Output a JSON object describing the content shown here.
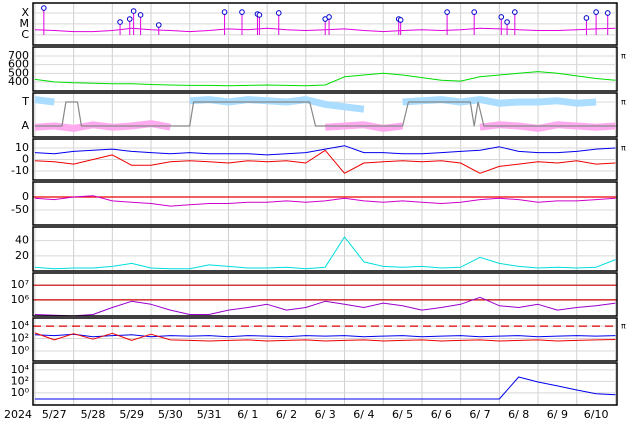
{
  "chart_data": [
    {
      "type": "line",
      "log": true,
      "ylim": [
        1.2e-07,
        0.00081
      ],
      "yticks": [
        {
          "value": 0.0001,
          "label": "X"
        },
        {
          "value": 1e-05,
          "label": "M"
        },
        {
          "value": 1e-06,
          "label": "C"
        }
      ],
      "x": [
        0,
        0.5,
        1,
        1.5,
        2,
        2.5,
        3,
        3.5,
        4,
        4.5,
        5,
        5.5,
        6,
        6.5,
        7,
        7.5,
        8,
        8.5,
        9,
        9.5,
        10,
        10.5,
        11,
        11.5,
        12,
        12.5,
        13,
        13.5,
        14,
        14.5,
        15
      ],
      "series": [
        {
          "color": "#e000e0",
          "values": [
            3e-06,
            2.5e-06,
            2e-06,
            2e-06,
            2.5e-06,
            4e-06,
            3e-06,
            2.5e-06,
            2e-06,
            2.5e-06,
            3.5e-06,
            3e-06,
            4e-06,
            3e-06,
            2.5e-06,
            3e-06,
            3.5e-06,
            2.5e-06,
            2e-06,
            2.5e-06,
            3e-06,
            2.5e-06,
            3e-06,
            4e-06,
            3.5e-06,
            3e-06,
            2.5e-06,
            2.5e-06,
            3e-06,
            3.5e-06,
            4e-06
          ]
        }
      ],
      "flares": {
        "color": "#0000cc",
        "stem_color": "#e000e0",
        "x": [
          0.23,
          2.2,
          2.45,
          2.55,
          2.73,
          3.2,
          4.9,
          5.35,
          5.75,
          5.8,
          6.3,
          7.5,
          7.6,
          9.4,
          9.45,
          10.65,
          11.35,
          12.05,
          12.2,
          12.4,
          14.25,
          14.5,
          14.8
        ],
        "values": [
          0.00028,
          1.5e-05,
          2.8e-05,
          0.00015,
          6.6e-05,
          8e-06,
          0.00012,
          0.00012,
          8e-05,
          6.6e-05,
          0.0001,
          2.8e-05,
          4.3e-05,
          2.8e-05,
          2.3e-05,
          0.00012,
          0.00012,
          4.3e-05,
          1.5e-05,
          0.00012,
          3.5e-05,
          0.00012,
          0.0001
        ]
      }
    },
    {
      "type": "line",
      "ylim": [
        295,
        805
      ],
      "yticks": [
        700,
        600,
        500,
        400
      ],
      "side_label": "π",
      "x": [
        0,
        0.5,
        1,
        1.5,
        2,
        2.5,
        3,
        3.5,
        4,
        4.5,
        5,
        5.5,
        6,
        6.5,
        7,
        7.5,
        8,
        8.5,
        9,
        9.5,
        10,
        10.5,
        11,
        11.5,
        12,
        12.5,
        13,
        13.5,
        14,
        14.5,
        15
      ],
      "series": [
        {
          "color": "#00dd00",
          "values": [
            430,
            400,
            390,
            385,
            380,
            380,
            370,
            365,
            360,
            360,
            355,
            360,
            365,
            360,
            355,
            365,
            460,
            480,
            500,
            480,
            450,
            420,
            410,
            460,
            480,
            500,
            520,
            500,
            470,
            440,
            420
          ]
        }
      ]
    },
    {
      "type": "line",
      "ylim": [
        -0.46,
        1.375
      ],
      "yticks": [
        {
          "value": 1,
          "label": "T"
        },
        {
          "value": 0,
          "label": "A"
        }
      ],
      "side_label": "π",
      "x": [
        0,
        0.5,
        1,
        1.5,
        2,
        2.5,
        3,
        3.5,
        4,
        4.5,
        5,
        5.5,
        6,
        6.5,
        7,
        7.5,
        8,
        8.5,
        9,
        9.5,
        10,
        10.5,
        11,
        11.5,
        12,
        12.5,
        13,
        13.5,
        14,
        14.5,
        15
      ],
      "series": [
        {
          "color": "#aaddff",
          "width": 7,
          "values": [
            1.1,
            1.0,
            null,
            null,
            null,
            null,
            null,
            null,
            1.05,
            1.1,
            1.0,
            1.1,
            1.05,
            1.0,
            1.1,
            0.9,
            0.8,
            0.7,
            null,
            1.0,
            1.05,
            1.1,
            1.0,
            1.1,
            0.95,
            1.0,
            1.0,
            1.05,
            0.95,
            1.0,
            null
          ]
        },
        {
          "color": "#ffaaee",
          "width": 7,
          "values": [
            -0.05,
            0.0,
            -0.1,
            0.05,
            -0.05,
            0.0,
            0.1,
            -0.05,
            null,
            null,
            null,
            null,
            null,
            null,
            null,
            -0.05,
            0.0,
            0.05,
            -0.1,
            0.0,
            null,
            null,
            null,
            -0.05,
            0.05,
            0.0,
            -0.1,
            0.05,
            0.0,
            -0.05,
            0.0
          ]
        },
        {
          "color": "#888888",
          "width": 1.2,
          "x": [
            0,
            0.7,
            0.8,
            1.1,
            1.2,
            4.0,
            4.1,
            7.1,
            7.25,
            9.5,
            9.65,
            11.25,
            11.35,
            11.45,
            11.6,
            15.04
          ],
          "values": [
            0,
            0,
            1,
            1,
            0,
            0,
            1,
            1,
            0,
            0,
            1,
            1,
            0,
            1,
            0,
            0
          ]
        }
      ]
    },
    {
      "type": "line",
      "ylim": [
        -17.8,
        17.8
      ],
      "yticks": [
        10,
        0,
        -10
      ],
      "side_label": "π",
      "x": [
        0,
        0.5,
        1,
        1.5,
        2,
        2.5,
        3,
        3.5,
        4,
        4.5,
        5,
        5.5,
        6,
        6.5,
        7,
        7.5,
        8,
        8.5,
        9,
        9.5,
        10,
        10.5,
        11,
        11.5,
        12,
        12.5,
        13,
        13.5,
        14,
        14.5,
        15
      ],
      "series": [
        {
          "color": "#0000ee",
          "values": [
            6,
            5,
            7,
            8,
            9,
            7,
            6,
            5,
            6,
            5,
            5,
            5,
            4,
            5,
            6,
            9,
            12,
            6,
            6,
            5,
            5,
            6,
            7,
            8,
            11,
            7,
            6,
            6,
            7,
            9,
            10
          ]
        },
        {
          "color": "#ee0000",
          "values": [
            -1,
            -2,
            -4,
            0,
            4,
            -5,
            -5,
            -2,
            -1,
            -2,
            -3,
            -1,
            -2,
            -1,
            -3,
            8,
            -12,
            -3,
            -2,
            -1,
            -2,
            -1,
            -3,
            -12,
            -6,
            -4,
            -2,
            -3,
            -1,
            -4,
            -3
          ]
        }
      ]
    },
    {
      "type": "line",
      "ylim": [
        -107.7,
        57.7
      ],
      "yticks": [
        0,
        -50
      ],
      "hlines": [
        0
      ],
      "hline_color": "#ee0000",
      "x": [
        0,
        0.5,
        1,
        1.5,
        2,
        2.5,
        3,
        3.5,
        4,
        4.5,
        5,
        5.5,
        6,
        6.5,
        7,
        7.5,
        8,
        8.5,
        9,
        9.5,
        10,
        10.5,
        11,
        11.5,
        12,
        12.5,
        13,
        13.5,
        14,
        14.5,
        15
      ],
      "series": [
        {
          "color": "#cc00cc",
          "values": [
            -5,
            -10,
            0,
            5,
            -15,
            -20,
            -25,
            -35,
            -30,
            -25,
            -25,
            -20,
            -20,
            -15,
            -20,
            -15,
            -5,
            -15,
            -20,
            -15,
            -20,
            -25,
            -20,
            -10,
            -5,
            -10,
            -20,
            -15,
            -15,
            -10,
            -5
          ]
        }
      ]
    },
    {
      "type": "line",
      "ylim": [
        0,
        58
      ],
      "yticks": [
        40,
        20
      ],
      "x": [
        0,
        0.5,
        1,
        1.5,
        2,
        2.5,
        3,
        3.5,
        4,
        4.5,
        5,
        5.5,
        6,
        6.5,
        7,
        7.5,
        8,
        8.5,
        9,
        9.5,
        10,
        10.5,
        11,
        11.5,
        12,
        12.5,
        13,
        13.5,
        14,
        14.5,
        15
      ],
      "series": [
        {
          "color": "#00dddd",
          "values": [
            5,
            3,
            4,
            4,
            6,
            10,
            4,
            3,
            3,
            8,
            6,
            4,
            4,
            5,
            3,
            5,
            45,
            12,
            6,
            5,
            6,
            4,
            5,
            18,
            10,
            6,
            4,
            5,
            4,
            5,
            15
          ]
        }
      ]
    },
    {
      "type": "line",
      "log": true,
      "ylim": [
        79000,
        68000000
      ],
      "yticks": [
        {
          "value": 10000000,
          "label": "10⁷"
        },
        {
          "value": 1000000,
          "label": "10⁶"
        }
      ],
      "hlines": [
        10000000,
        1000000
      ],
      "hline_color": "#cc0000",
      "x": [
        0,
        0.5,
        1,
        1.5,
        2,
        2.5,
        3,
        3.5,
        4,
        4.5,
        5,
        5.5,
        6,
        6.5,
        7,
        7.5,
        8,
        8.5,
        9,
        9.5,
        10,
        10.5,
        11,
        11.5,
        12,
        12.5,
        13,
        13.5,
        14,
        14.5,
        15
      ],
      "series": [
        {
          "color": "#9900cc",
          "values": [
            100000,
            90000,
            80000,
            100000,
            300000,
            800000,
            500000,
            200000,
            100000,
            100000,
            200000,
            300000,
            500000,
            200000,
            300000,
            800000,
            500000,
            300000,
            600000,
            400000,
            200000,
            300000,
            500000,
            1500000,
            400000,
            300000,
            500000,
            200000,
            300000,
            400000,
            600000
          ]
        }
      ]
    },
    {
      "type": "line",
      "log": true,
      "ylim": [
        0.025,
        200000
      ],
      "yticks": [
        {
          "value": 10000,
          "label": "10⁴"
        },
        {
          "value": 100,
          "label": "10²"
        },
        {
          "value": 1,
          "label": "10⁰"
        }
      ],
      "hlines": [
        10000
      ],
      "hline_color": "#dd0000",
      "hline_dash": true,
      "side_label": "π",
      "x": [
        0,
        0.5,
        1,
        1.5,
        2,
        2.5,
        3,
        3.5,
        4,
        4.5,
        5,
        5.5,
        6,
        6.5,
        7,
        7.5,
        8,
        8.5,
        9,
        9.5,
        10,
        10.5,
        11,
        11.5,
        12,
        12.5,
        13,
        13.5,
        14,
        14.5,
        15
      ],
      "series": [
        {
          "color": "#0000ee",
          "values": [
            400,
            300,
            500,
            200,
            300,
            400,
            200,
            300,
            250,
            300,
            200,
            300,
            250,
            200,
            300,
            250,
            300,
            200,
            250,
            300,
            200,
            250,
            300,
            200,
            250,
            300,
            200,
            250,
            300,
            250,
            300
          ]
        },
        {
          "color": "#ee0000",
          "values": [
            800,
            60,
            600,
            80,
            700,
            50,
            500,
            60,
            50,
            40,
            50,
            60,
            40,
            50,
            60,
            40,
            50,
            60,
            40,
            50,
            60,
            40,
            50,
            60,
            40,
            50,
            60,
            40,
            50,
            60,
            70
          ]
        }
      ]
    },
    {
      "type": "line",
      "log": true,
      "ylim": [
        0.008,
        160000
      ],
      "yticks": [
        {
          "value": 10000,
          "label": "10⁴"
        },
        {
          "value": 100,
          "label": "10²"
        },
        {
          "value": 1,
          "label": "10⁰"
        }
      ],
      "x": [
        0,
        0.5,
        1,
        1.5,
        2,
        2.5,
        3,
        3.5,
        4,
        4.5,
        5,
        5.5,
        6,
        6.5,
        7,
        7.5,
        8,
        8.5,
        9,
        9.5,
        10,
        10.5,
        11,
        11.5,
        12,
        12.5,
        13,
        13.5,
        14,
        14.5,
        15
      ],
      "series": [
        {
          "color": "#0000ee",
          "values": [
            0.09,
            0.09,
            0.09,
            0.09,
            0.09,
            0.09,
            0.09,
            0.09,
            0.09,
            0.09,
            0.09,
            0.09,
            0.09,
            0.09,
            0.09,
            0.09,
            0.09,
            0.09,
            0.09,
            0.09,
            0.09,
            0.09,
            0.09,
            0.09,
            0.09,
            600,
            81,
            17,
            3.3,
            0.7,
            0.5
          ]
        }
      ],
      "xlim": [
        -0.05,
        15.04
      ],
      "xgrid": [
        0,
        1,
        2,
        3,
        4,
        5,
        6,
        7,
        8,
        9,
        10,
        11,
        12,
        13,
        14,
        15
      ],
      "x_start_label": "2024",
      "xticks": [
        {
          "value": 0.5,
          "label": "5/27"
        },
        {
          "value": 1.5,
          "label": "5/28"
        },
        {
          "value": 2.5,
          "label": "5/29"
        },
        {
          "value": 3.5,
          "label": "5/30"
        },
        {
          "value": 4.5,
          "label": "5/31"
        },
        {
          "value": 5.5,
          "label": "6/ 1"
        },
        {
          "value": 6.5,
          "label": "6/ 2"
        },
        {
          "value": 7.5,
          "label": "6/ 3"
        },
        {
          "value": 8.5,
          "label": "6/ 4"
        },
        {
          "value": 9.5,
          "label": "6/ 5"
        },
        {
          "value": 10.5,
          "label": "6/ 6"
        },
        {
          "value": 11.5,
          "label": "6/ 7"
        },
        {
          "value": 12.5,
          "label": "6/ 8"
        },
        {
          "value": 13.5,
          "label": "6/ 9"
        },
        {
          "value": 14.5,
          "label": "6/10"
        }
      ]
    }
  ]
}
